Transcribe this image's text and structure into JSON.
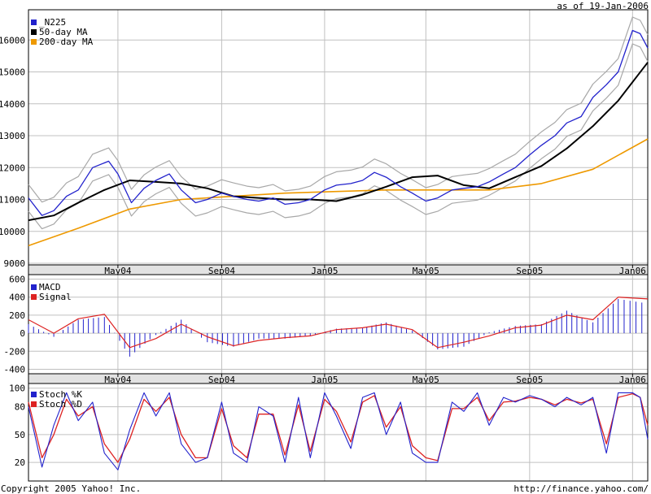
{
  "header": {
    "as_of": "as of 19-Jan-2006"
  },
  "footer": {
    "copyright": "Copyright 2005 Yahoo! Inc.",
    "url": "http://finance.yahoo.com/"
  },
  "colors": {
    "n225": "#2222cc",
    "ma50": "#000000",
    "ma200": "#ee9900",
    "band": "#a8a8a8",
    "macd": "#2222cc",
    "signal": "#dd2222",
    "stoch_k": "#2222cc",
    "stoch_d": "#dd2222",
    "grid": "#c0c0c0",
    "axis_strip": "#e2e2e2"
  },
  "chart_data": [
    {
      "type": "line",
      "x_ticks": [
        "May04",
        "Sep04",
        "Jan05",
        "May05",
        "Sep05",
        "Jan06"
      ],
      "x_tick_dates": [
        "2004-05-01",
        "2004-09-01",
        "2005-01-01",
        "2005-05-01",
        "2005-09-01",
        "2006-01-01"
      ],
      "xlim": [
        "2004-01-16",
        "2006-01-19"
      ],
      "ylim": [
        8950,
        16950
      ],
      "yticks": [
        9000,
        10000,
        11000,
        12000,
        13000,
        14000,
        15000,
        16000
      ],
      "legend": [
        "_N225",
        "50-day MA",
        "200-day MA"
      ],
      "legend_position": "top-left",
      "series": [
        {
          "name": "_N225",
          "dates": [
            "2004-01-16",
            "2004-02-01",
            "2004-02-15",
            "2004-03-01",
            "2004-03-15",
            "2004-04-01",
            "2004-04-20",
            "2004-05-01",
            "2004-05-17",
            "2004-06-01",
            "2004-06-15",
            "2004-07-01",
            "2004-07-15",
            "2004-08-01",
            "2004-08-15",
            "2004-09-01",
            "2004-09-15",
            "2004-10-01",
            "2004-10-15",
            "2004-11-01",
            "2004-11-15",
            "2004-12-01",
            "2004-12-15",
            "2005-01-01",
            "2005-01-15",
            "2005-02-01",
            "2005-02-15",
            "2005-03-01",
            "2005-03-15",
            "2005-04-01",
            "2005-04-15",
            "2005-05-01",
            "2005-05-15",
            "2005-06-01",
            "2005-06-15",
            "2005-07-01",
            "2005-07-15",
            "2005-08-01",
            "2005-08-15",
            "2005-09-01",
            "2005-09-15",
            "2005-10-01",
            "2005-10-15",
            "2005-11-01",
            "2005-11-15",
            "2005-12-01",
            "2005-12-15",
            "2006-01-01",
            "2006-01-10",
            "2006-01-19"
          ],
          "values": [
            11050,
            10500,
            10650,
            11100,
            11300,
            12000,
            12200,
            11800,
            10900,
            11350,
            11600,
            11800,
            11300,
            10900,
            11000,
            11200,
            11100,
            11000,
            10950,
            11050,
            10850,
            10900,
            11000,
            11300,
            11450,
            11500,
            11600,
            11850,
            11700,
            11400,
            11200,
            10950,
            11050,
            11300,
            11350,
            11400,
            11550,
            11800,
            12000,
            12400,
            12700,
            13000,
            13400,
            13600,
            14200,
            14600,
            15000,
            16300,
            16200,
            15750
          ]
        },
        {
          "name": "50-day MA",
          "dates": [
            "2004-01-16",
            "2004-02-15",
            "2004-03-15",
            "2004-04-15",
            "2004-05-15",
            "2004-06-15",
            "2004-07-15",
            "2004-08-15",
            "2004-09-15",
            "2004-10-15",
            "2004-11-15",
            "2004-12-15",
            "2005-01-15",
            "2005-02-15",
            "2005-03-15",
            "2005-04-15",
            "2005-05-15",
            "2005-06-15",
            "2005-07-15",
            "2005-08-15",
            "2005-09-15",
            "2005-10-15",
            "2005-11-15",
            "2005-12-15",
            "2006-01-19"
          ],
          "values": [
            10350,
            10500,
            10900,
            11300,
            11600,
            11550,
            11500,
            11350,
            11100,
            11050,
            11000,
            11000,
            10950,
            11150,
            11400,
            11700,
            11750,
            11450,
            11350,
            11700,
            12050,
            12600,
            13300,
            14100,
            15300
          ]
        },
        {
          "name": "200-day MA",
          "dates": [
            "2004-01-16",
            "2004-03-15",
            "2004-05-15",
            "2004-07-15",
            "2004-09-15",
            "2004-11-15",
            "2005-01-15",
            "2005-03-15",
            "2005-05-15",
            "2005-07-15",
            "2005-09-15",
            "2005-11-15",
            "2006-01-19"
          ],
          "values": [
            9550,
            10100,
            10700,
            11000,
            11100,
            11200,
            11250,
            11300,
            11300,
            11300,
            11500,
            11950,
            12900
          ]
        }
      ]
    },
    {
      "type": "bar",
      "x_ticks": [
        "May04",
        "Sep04",
        "Jan05",
        "May05",
        "Sep05",
        "Jan06"
      ],
      "ylim": [
        -450,
        650
      ],
      "yticks": [
        -400,
        -200,
        0,
        200,
        400,
        600
      ],
      "legend": [
        "MACD",
        "Signal"
      ],
      "legend_position": "top-left",
      "series": [
        {
          "name": "MACD",
          "dates": [
            "2004-01-16",
            "2004-02-15",
            "2004-03-15",
            "2004-04-15",
            "2004-05-15",
            "2004-06-15",
            "2004-07-15",
            "2004-08-15",
            "2004-09-15",
            "2004-10-15",
            "2004-11-15",
            "2004-12-15",
            "2005-01-15",
            "2005-02-15",
            "2005-03-15",
            "2005-04-15",
            "2005-05-15",
            "2005-06-15",
            "2005-07-15",
            "2005-08-15",
            "2005-09-15",
            "2005-10-15",
            "2005-11-15",
            "2005-12-15",
            "2006-01-19"
          ],
          "values": [
            100,
            -40,
            150,
            180,
            -260,
            -20,
            150,
            -100,
            -150,
            -60,
            -60,
            -30,
            50,
            60,
            120,
            30,
            -180,
            -150,
            10,
            80,
            100,
            250,
            120,
            380,
            330
          ]
        },
        {
          "name": "Signal",
          "dates": [
            "2004-01-16",
            "2004-02-15",
            "2004-03-15",
            "2004-04-15",
            "2004-05-15",
            "2004-06-15",
            "2004-07-15",
            "2004-08-15",
            "2004-09-15",
            "2004-10-15",
            "2004-11-15",
            "2004-12-15",
            "2005-01-15",
            "2005-02-15",
            "2005-03-15",
            "2005-04-15",
            "2005-05-15",
            "2005-06-15",
            "2005-07-15",
            "2005-08-15",
            "2005-09-15",
            "2005-10-15",
            "2005-11-15",
            "2005-12-15",
            "2006-01-19"
          ],
          "values": [
            150,
            0,
            160,
            210,
            -160,
            -60,
            100,
            -40,
            -140,
            -80,
            -50,
            -30,
            40,
            60,
            100,
            40,
            -160,
            -100,
            -30,
            60,
            90,
            200,
            150,
            400,
            380
          ]
        }
      ]
    },
    {
      "type": "line",
      "x_ticks": [
        "May04",
        "Sep04",
        "Jan05",
        "May05",
        "Sep05",
        "Jan06"
      ],
      "ylim": [
        0,
        105
      ],
      "yticks": [
        20,
        50,
        80,
        100
      ],
      "legend": [
        "Stoch %K",
        "Stoch %D"
      ],
      "legend_position": "top-left",
      "series": [
        {
          "name": "Stoch %K",
          "dates": [
            "2004-01-16",
            "2004-02-01",
            "2004-02-15",
            "2004-03-01",
            "2004-03-15",
            "2004-04-01",
            "2004-04-15",
            "2004-05-01",
            "2004-05-15",
            "2004-06-01",
            "2004-06-15",
            "2004-07-01",
            "2004-07-15",
            "2004-08-01",
            "2004-08-15",
            "2004-09-01",
            "2004-09-15",
            "2004-10-01",
            "2004-10-15",
            "2004-11-01",
            "2004-11-15",
            "2004-12-01",
            "2004-12-15",
            "2005-01-01",
            "2005-01-15",
            "2005-02-01",
            "2005-02-15",
            "2005-03-01",
            "2005-03-15",
            "2005-04-01",
            "2005-04-15",
            "2005-05-01",
            "2005-05-15",
            "2005-06-01",
            "2005-06-15",
            "2005-07-01",
            "2005-07-15",
            "2005-08-01",
            "2005-08-15",
            "2005-09-01",
            "2005-09-15",
            "2005-10-01",
            "2005-10-15",
            "2005-11-01",
            "2005-11-15",
            "2005-12-01",
            "2005-12-15",
            "2006-01-01",
            "2006-01-10",
            "2006-01-19"
          ],
          "values": [
            80,
            15,
            60,
            95,
            65,
            85,
            30,
            12,
            55,
            95,
            70,
            95,
            40,
            20,
            25,
            85,
            30,
            20,
            80,
            70,
            20,
            90,
            25,
            95,
            70,
            35,
            90,
            95,
            50,
            85,
            30,
            20,
            20,
            85,
            75,
            95,
            60,
            90,
            85,
            92,
            88,
            80,
            90,
            82,
            90,
            30,
            95,
            95,
            90,
            45
          ]
        },
        {
          "name": "Stoch %D",
          "dates": [
            "2004-01-16",
            "2004-02-01",
            "2004-02-15",
            "2004-03-01",
            "2004-03-15",
            "2004-04-01",
            "2004-04-15",
            "2004-05-01",
            "2004-05-15",
            "2004-06-01",
            "2004-06-15",
            "2004-07-01",
            "2004-07-15",
            "2004-08-01",
            "2004-08-15",
            "2004-09-01",
            "2004-09-15",
            "2004-10-01",
            "2004-10-15",
            "2004-11-01",
            "2004-11-15",
            "2004-12-01",
            "2004-12-15",
            "2005-01-01",
            "2005-01-15",
            "2005-02-01",
            "2005-02-15",
            "2005-03-01",
            "2005-03-15",
            "2005-04-01",
            "2005-04-15",
            "2005-05-01",
            "2005-05-15",
            "2005-06-01",
            "2005-06-15",
            "2005-07-01",
            "2005-07-15",
            "2005-08-01",
            "2005-08-15",
            "2005-09-01",
            "2005-09-15",
            "2005-10-01",
            "2005-10-15",
            "2005-11-01",
            "2005-11-15",
            "2005-12-01",
            "2005-12-15",
            "2006-01-01",
            "2006-01-10",
            "2006-01-19"
          ],
          "values": [
            85,
            25,
            50,
            88,
            70,
            80,
            40,
            20,
            45,
            88,
            75,
            90,
            50,
            25,
            25,
            78,
            38,
            25,
            72,
            72,
            28,
            82,
            32,
            88,
            75,
            42,
            85,
            92,
            58,
            80,
            38,
            25,
            22,
            78,
            78,
            90,
            65,
            85,
            86,
            90,
            88,
            82,
            88,
            84,
            88,
            40,
            90,
            94,
            90,
            60
          ]
        }
      ]
    }
  ]
}
